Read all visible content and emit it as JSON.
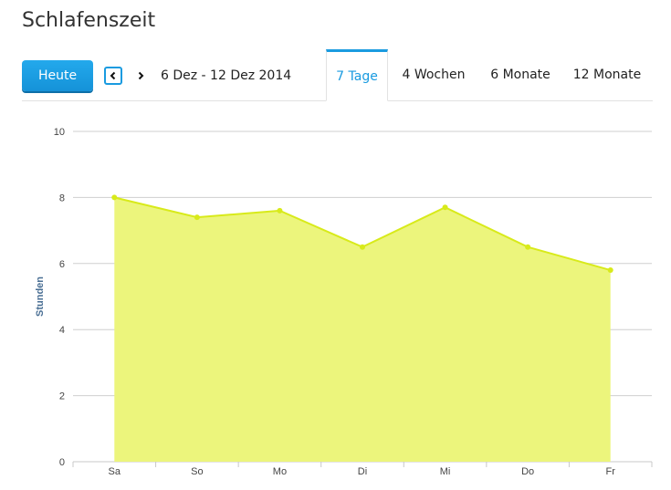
{
  "header": {
    "title": "Schlafenszeit"
  },
  "toolbar": {
    "today_label": "Heute",
    "prev_icon": "chevron-left-icon",
    "next_icon": "chevron-right-icon",
    "range_label": "6 Dez - 12 Dez 2014"
  },
  "tabs": [
    {
      "label": "7 Tage",
      "active": true
    },
    {
      "label": "4 Wochen",
      "active": false
    },
    {
      "label": "6 Monate",
      "active": false
    },
    {
      "label": "12 Monate",
      "active": false
    }
  ],
  "colors": {
    "accent": "#1a9be0",
    "area_fill": "#ecf57c",
    "line": "#d8ea1a",
    "axis_label": "#4a6f94"
  },
  "chart_data": {
    "type": "area",
    "categories": [
      "Sa",
      "So",
      "Mo",
      "Di",
      "Mi",
      "Do",
      "Fr"
    ],
    "values": [
      8.0,
      7.4,
      7.6,
      6.5,
      7.7,
      6.5,
      5.8
    ],
    "ylabel": "Stunden",
    "ylim": [
      0,
      10
    ],
    "yticks": [
      0,
      2,
      4,
      6,
      8,
      10
    ],
    "grid": true
  }
}
